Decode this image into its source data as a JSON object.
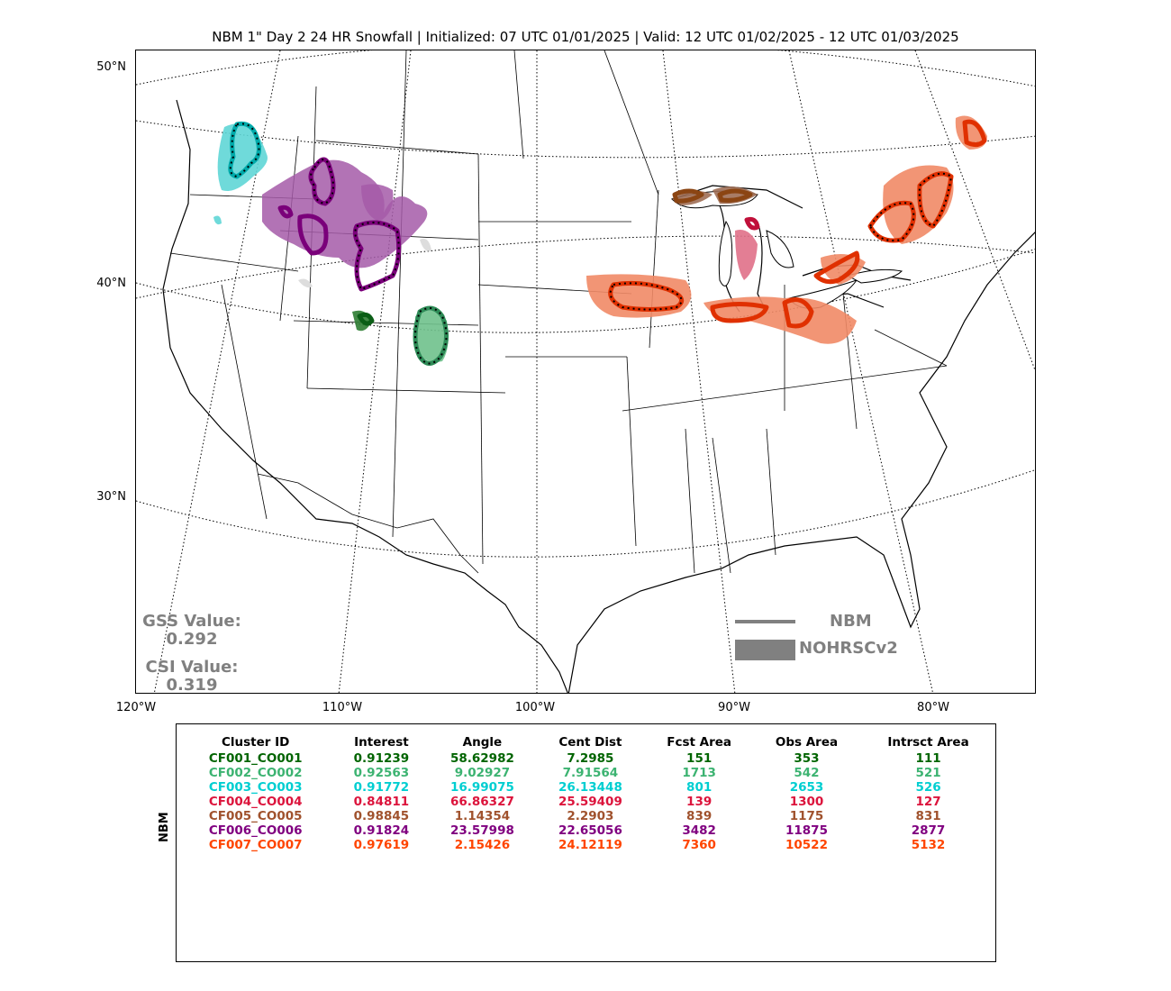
{
  "title": "NBM 1\" Day 2 24 HR Snowfall | Initialized: 07 UTC 01/01/2025 | Valid: 12 UTC 01/02/2025 - 12 UTC 01/03/2025",
  "lat_labels": [
    "50°N",
    "40°N",
    "30°N"
  ],
  "lon_labels": [
    "120°W",
    "110°W",
    "100°W",
    "90°W",
    "80°W"
  ],
  "scores": {
    "gss_label": "GSS Value:",
    "gss_value": "0.292",
    "csi_label": "CSI Value:",
    "csi_value": "0.319"
  },
  "legend": {
    "line_label": "NBM",
    "fill_label": "NOHRSCv2",
    "color": "#808080"
  },
  "table": {
    "side_label": "NBM",
    "headers": [
      "Cluster ID",
      "Interest",
      "Angle",
      "Cent Dist",
      "Fcst Area",
      "Obs Area",
      "Intrsct Area"
    ],
    "rows": [
      {
        "color": "#006400",
        "cells": [
          "CF001_CO001",
          "0.91239",
          "58.62982",
          "7.2985",
          "151",
          "353",
          "111"
        ]
      },
      {
        "color": "#3CB371",
        "cells": [
          "CF002_CO002",
          "0.92563",
          "9.02927",
          "7.91564",
          "1713",
          "542",
          "521"
        ]
      },
      {
        "color": "#00CED1",
        "cells": [
          "CF003_CO003",
          "0.91772",
          "16.99075",
          "26.13448",
          "801",
          "2653",
          "526"
        ]
      },
      {
        "color": "#DC143C",
        "cells": [
          "CF004_CO004",
          "0.84811",
          "66.86327",
          "25.59409",
          "139",
          "1300",
          "127"
        ]
      },
      {
        "color": "#A0522D",
        "cells": [
          "CF005_CO005",
          "0.98845",
          "1.14354",
          "2.2903",
          "839",
          "1175",
          "831"
        ]
      },
      {
        "color": "#800080",
        "cells": [
          "CF006_CO006",
          "0.91824",
          "23.57998",
          "22.65056",
          "3482",
          "11875",
          "2877"
        ]
      },
      {
        "color": "#FF4500",
        "cells": [
          "CF007_CO007",
          "0.97619",
          "2.15426",
          "24.12119",
          "7360",
          "10522",
          "5132"
        ]
      }
    ]
  }
}
